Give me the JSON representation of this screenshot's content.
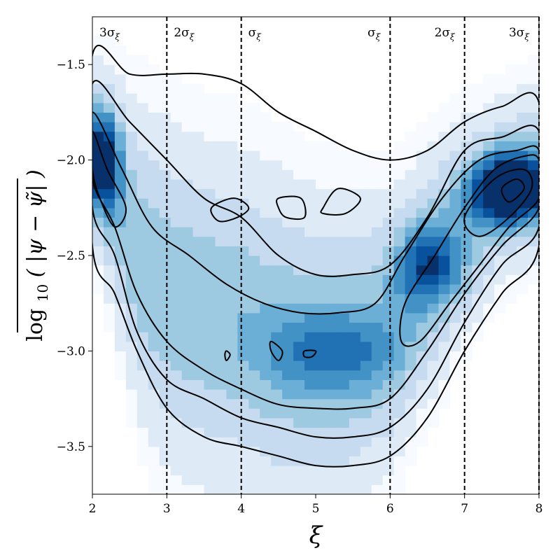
{
  "chart_data": {
    "type": "heatmap",
    "title": "",
    "xlabel": "ξ",
    "ylabel_main": "log",
    "ylabel_sub": "10",
    "ylabel_expr": "( |ψ − ψ̃| )",
    "xlim": [
      2,
      8
    ],
    "ylim": [
      -3.75,
      -1.25
    ],
    "x_ticks": [
      "2",
      "3",
      "4",
      "5",
      "6",
      "7",
      "8"
    ],
    "y_ticks": [
      "−1.5",
      "−2.0",
      "−2.5",
      "−3.0",
      "−3.5"
    ],
    "x_tick_values": [
      2,
      3,
      4,
      5,
      6,
      7,
      8
    ],
    "y_tick_values": [
      -1.5,
      -2.0,
      -2.5,
      -3.0,
      -3.5
    ],
    "colormap": [
      "#f7fbff",
      "#deebf7",
      "#c6dbef",
      "#9ecae1",
      "#6baed6",
      "#4292c6",
      "#2171b5",
      "#08519c",
      "#08306b"
    ],
    "contour_color": "#000000",
    "vlines": [
      {
        "x": 3,
        "label": "2σ",
        "sub": "ξ"
      },
      {
        "x": 4,
        "label": "σ",
        "sub": "ξ"
      },
      {
        "x": 6,
        "label": "σ",
        "sub": "ξ"
      },
      {
        "x": 7,
        "label": "2σ",
        "sub": "ξ"
      },
      {
        "x": 8,
        "label": "3σ",
        "sub": "ξ"
      }
    ],
    "left_sigma_label": {
      "x": 2,
      "label": "3σ",
      "sub": "ξ"
    },
    "density_ridge": [
      {
        "x": 2.0,
        "y": -1.95,
        "w": 0.22
      },
      {
        "x": 2.3,
        "y": -2.2,
        "w": 0.3
      },
      {
        "x": 2.6,
        "y": -2.5,
        "w": 0.38
      },
      {
        "x": 3.0,
        "y": -2.7,
        "w": 0.42
      },
      {
        "x": 3.5,
        "y": -2.8,
        "w": 0.42
      },
      {
        "x": 4.0,
        "y": -2.85,
        "w": 0.42
      },
      {
        "x": 4.5,
        "y": -2.95,
        "w": 0.42
      },
      {
        "x": 5.0,
        "y": -3.0,
        "w": 0.4
      },
      {
        "x": 5.5,
        "y": -3.0,
        "w": 0.38
      },
      {
        "x": 6.0,
        "y": -2.9,
        "w": 0.34
      },
      {
        "x": 6.5,
        "y": -2.6,
        "w": 0.3
      },
      {
        "x": 7.0,
        "y": -2.35,
        "w": 0.26
      },
      {
        "x": 7.5,
        "y": -2.15,
        "w": 0.22
      },
      {
        "x": 8.0,
        "y": -2.05,
        "w": 0.22
      }
    ],
    "hotspots": [
      {
        "x": 2.15,
        "y": -2.0,
        "amp": 0.75,
        "sx": 0.15,
        "sy": 0.18
      },
      {
        "x": 7.6,
        "y": -2.15,
        "amp": 1.0,
        "sx": 0.35,
        "sy": 0.12
      },
      {
        "x": 6.5,
        "y": -2.55,
        "amp": 0.5,
        "sx": 0.3,
        "sy": 0.15
      },
      {
        "x": 5.2,
        "y": -3.0,
        "amp": 0.35,
        "sx": 0.6,
        "sy": 0.15
      }
    ],
    "contours": [
      [
        [
          2.0,
          -1.45
        ],
        [
          2.5,
          -1.55
        ],
        [
          3.0,
          -1.55
        ],
        [
          3.5,
          -1.55
        ],
        [
          4.0,
          -1.6
        ],
        [
          4.5,
          -1.75
        ],
        [
          5.0,
          -1.85
        ],
        [
          5.5,
          -1.95
        ],
        [
          6.0,
          -2.0
        ],
        [
          6.5,
          -1.95
        ],
        [
          7.0,
          -1.8
        ],
        [
          7.5,
          -1.72
        ],
        [
          8.0,
          -1.7
        ],
        [
          8.0,
          -2.45
        ],
        [
          7.5,
          -2.7
        ],
        [
          7.0,
          -3.0
        ],
        [
          6.5,
          -3.35
        ],
        [
          6.0,
          -3.55
        ],
        [
          5.5,
          -3.6
        ],
        [
          5.0,
          -3.6
        ],
        [
          4.5,
          -3.55
        ],
        [
          4.0,
          -3.5
        ],
        [
          3.5,
          -3.45
        ],
        [
          3.0,
          -3.3
        ],
        [
          2.6,
          -3.0
        ],
        [
          2.3,
          -2.7
        ],
        [
          2.0,
          -2.45
        ]
      ],
      [
        [
          2.0,
          -1.6
        ],
        [
          2.5,
          -1.8
        ],
        [
          3.0,
          -2.0
        ],
        [
          3.5,
          -2.2
        ],
        [
          4.0,
          -2.3
        ],
        [
          4.5,
          -2.5
        ],
        [
          5.0,
          -2.6
        ],
        [
          5.5,
          -2.6
        ],
        [
          6.0,
          -2.55
        ],
        [
          6.5,
          -2.3
        ],
        [
          7.0,
          -1.95
        ],
        [
          7.5,
          -1.88
        ],
        [
          8.0,
          -1.85
        ],
        [
          8.0,
          -2.35
        ],
        [
          7.5,
          -2.55
        ],
        [
          7.0,
          -2.85
        ],
        [
          6.5,
          -3.2
        ],
        [
          6.0,
          -3.4
        ],
        [
          5.5,
          -3.45
        ],
        [
          5.0,
          -3.45
        ],
        [
          4.5,
          -3.4
        ],
        [
          4.0,
          -3.35
        ],
        [
          3.5,
          -3.25
        ],
        [
          3.0,
          -3.15
        ],
        [
          2.6,
          -2.9
        ],
        [
          2.3,
          -2.5
        ],
        [
          2.0,
          -2.25
        ]
      ],
      [
        [
          2.0,
          -1.75
        ],
        [
          2.4,
          -2.05
        ],
        [
          2.8,
          -2.35
        ],
        [
          3.3,
          -2.5
        ],
        [
          3.8,
          -2.65
        ],
        [
          4.3,
          -2.75
        ],
        [
          4.8,
          -2.8
        ],
        [
          5.3,
          -2.8
        ],
        [
          5.8,
          -2.75
        ],
        [
          6.2,
          -2.5
        ],
        [
          6.7,
          -2.2
        ],
        [
          7.2,
          -2.0
        ],
        [
          7.7,
          -1.95
        ],
        [
          8.0,
          -1.95
        ],
        [
          8.0,
          -2.25
        ],
        [
          7.5,
          -2.45
        ],
        [
          7.0,
          -2.7
        ],
        [
          6.5,
          -3.0
        ],
        [
          6.0,
          -3.25
        ],
        [
          5.5,
          -3.3
        ],
        [
          5.0,
          -3.3
        ],
        [
          4.5,
          -3.28
        ],
        [
          4.0,
          -3.2
        ],
        [
          3.5,
          -3.1
        ],
        [
          3.0,
          -2.95
        ],
        [
          2.6,
          -2.7
        ],
        [
          2.3,
          -2.35
        ],
        [
          2.0,
          -2.1
        ]
      ],
      [
        [
          2.0,
          -1.85
        ],
        [
          2.2,
          -2.05
        ],
        [
          2.45,
          -2.25
        ],
        [
          2.3,
          -2.35
        ],
        [
          2.1,
          -2.2
        ],
        [
          2.0,
          -2.05
        ]
      ],
      [
        [
          6.2,
          -2.75
        ],
        [
          6.6,
          -2.5
        ],
        [
          7.0,
          -2.25
        ],
        [
          7.4,
          -2.05
        ],
        [
          7.8,
          -1.98
        ],
        [
          8.0,
          -2.0
        ],
        [
          8.0,
          -2.2
        ],
        [
          7.6,
          -2.35
        ],
        [
          7.2,
          -2.55
        ],
        [
          6.8,
          -2.75
        ],
        [
          6.4,
          -2.95
        ],
        [
          6.15,
          -2.95
        ]
      ],
      [
        [
          7.0,
          -2.3
        ],
        [
          7.4,
          -2.1
        ],
        [
          7.8,
          -2.05
        ],
        [
          7.9,
          -2.15
        ],
        [
          7.6,
          -2.3
        ],
        [
          7.2,
          -2.4
        ]
      ],
      [
        [
          7.5,
          -2.15
        ],
        [
          7.7,
          -2.1
        ],
        [
          7.8,
          -2.15
        ],
        [
          7.6,
          -2.22
        ]
      ],
      [
        [
          3.8,
          -3.0
        ],
        [
          3.85,
          -3.02
        ],
        [
          3.8,
          -3.05
        ],
        [
          3.78,
          -3.02
        ]
      ],
      [
        [
          4.4,
          -2.95
        ],
        [
          4.55,
          -3.0
        ],
        [
          4.5,
          -3.05
        ],
        [
          4.4,
          -3.0
        ]
      ],
      [
        [
          4.85,
          -3.0
        ],
        [
          5.0,
          -3.0
        ],
        [
          4.95,
          -3.03
        ],
        [
          4.85,
          -3.03
        ]
      ],
      [
        [
          3.6,
          -2.25
        ],
        [
          3.9,
          -2.2
        ],
        [
          4.1,
          -2.25
        ],
        [
          3.95,
          -2.3
        ],
        [
          3.7,
          -2.32
        ]
      ],
      [
        [
          4.5,
          -2.2
        ],
        [
          4.8,
          -2.2
        ],
        [
          4.85,
          -2.3
        ],
        [
          4.6,
          -2.3
        ],
        [
          4.5,
          -2.25
        ]
      ],
      [
        [
          5.1,
          -2.25
        ],
        [
          5.3,
          -2.15
        ],
        [
          5.6,
          -2.2
        ],
        [
          5.4,
          -2.28
        ],
        [
          5.1,
          -2.28
        ]
      ]
    ]
  }
}
